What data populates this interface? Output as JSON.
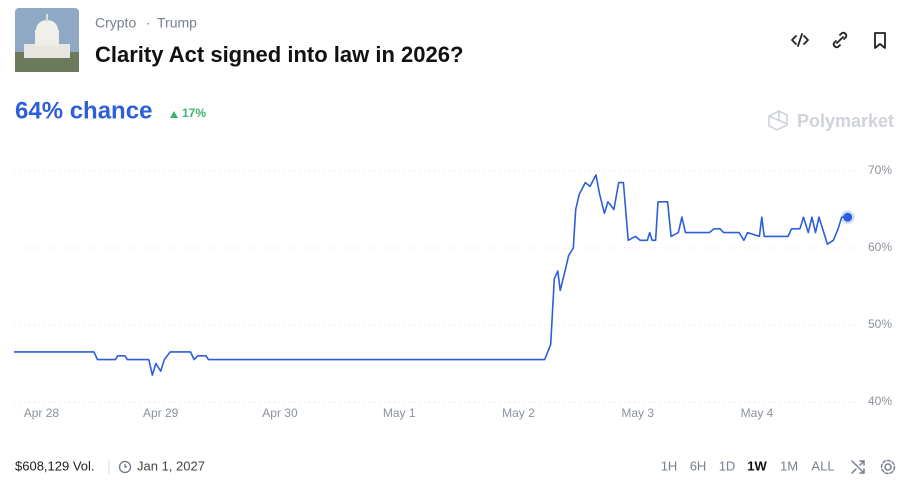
{
  "header": {
    "tags": [
      "Crypto",
      "Trump"
    ],
    "title": "Clarity Act signed into law in 2026?"
  },
  "summary": {
    "chance": "64% chance",
    "change": "17%"
  },
  "brand": "Polymarket",
  "chart_data": {
    "type": "line",
    "series": [
      {
        "color": "#2d5fd8",
        "x": [
          -0.23,
          0.44,
          0.47,
          0.62,
          0.64,
          0.7,
          0.72,
          0.9,
          0.93,
          0.96,
          1.0,
          1.03,
          1.08,
          1.25,
          1.28,
          1.31,
          1.38,
          1.4,
          4.22,
          4.27,
          4.3,
          4.33,
          4.35,
          4.39,
          4.42,
          4.46,
          4.48,
          4.51,
          4.56,
          4.6,
          4.65,
          4.68,
          4.72,
          4.75,
          4.8,
          4.84,
          4.88,
          4.92,
          4.98,
          5.02,
          5.08,
          5.1,
          5.12,
          5.15,
          5.17,
          5.25,
          5.28,
          5.34,
          5.37,
          5.4,
          5.6,
          5.64,
          5.69,
          5.72,
          5.85,
          5.89,
          5.92,
          6.02,
          6.04,
          6.06,
          6.26,
          6.29,
          6.36,
          6.39,
          6.43,
          6.46,
          6.49,
          6.52,
          6.56,
          6.59,
          6.64,
          6.68,
          6.71,
          6.76
        ],
        "values": [
          46.5,
          46.5,
          45.5,
          45.5,
          46,
          46,
          45.5,
          45.5,
          43.5,
          45,
          44,
          45.5,
          46.5,
          46.5,
          45.5,
          46,
          46,
          45.5,
          45.5,
          47.5,
          56,
          57,
          54.5,
          57,
          59,
          60,
          65,
          67,
          68.5,
          68,
          69.5,
          67,
          64.5,
          66,
          65,
          68.5,
          68.5,
          61,
          61.5,
          61,
          61,
          62,
          61,
          61,
          66,
          66,
          61.5,
          62,
          64,
          62,
          62,
          62.5,
          62.5,
          62,
          62,
          61,
          62,
          61.5,
          64,
          61.5,
          61.5,
          62.5,
          62.5,
          64,
          62,
          64,
          62,
          64,
          62,
          60.5,
          61,
          62.5,
          64,
          64
        ]
      }
    ],
    "xlim": [
      -0.23,
      6.83
    ],
    "xticks": [
      {
        "value": 0,
        "label": "Apr 28"
      },
      {
        "value": 1,
        "label": "Apr 29"
      },
      {
        "value": 2,
        "label": "Apr 30"
      },
      {
        "value": 3,
        "label": "May 1"
      },
      {
        "value": 4,
        "label": "May 2"
      },
      {
        "value": 5,
        "label": "May 3"
      },
      {
        "value": 6,
        "label": "May 4"
      }
    ],
    "ylim": [
      40,
      70
    ],
    "yticks": [
      {
        "value": 40,
        "label": "40%"
      },
      {
        "value": 50,
        "label": "50%"
      },
      {
        "value": 60,
        "label": "60%"
      },
      {
        "value": 70,
        "label": "70%"
      }
    ],
    "grid": true
  },
  "footer": {
    "volume": "$608,129 Vol.",
    "end_date": "Jan 1, 2027",
    "ranges": [
      "1H",
      "6H",
      "1D",
      "1W",
      "1M",
      "ALL"
    ],
    "active_range": "1W"
  }
}
